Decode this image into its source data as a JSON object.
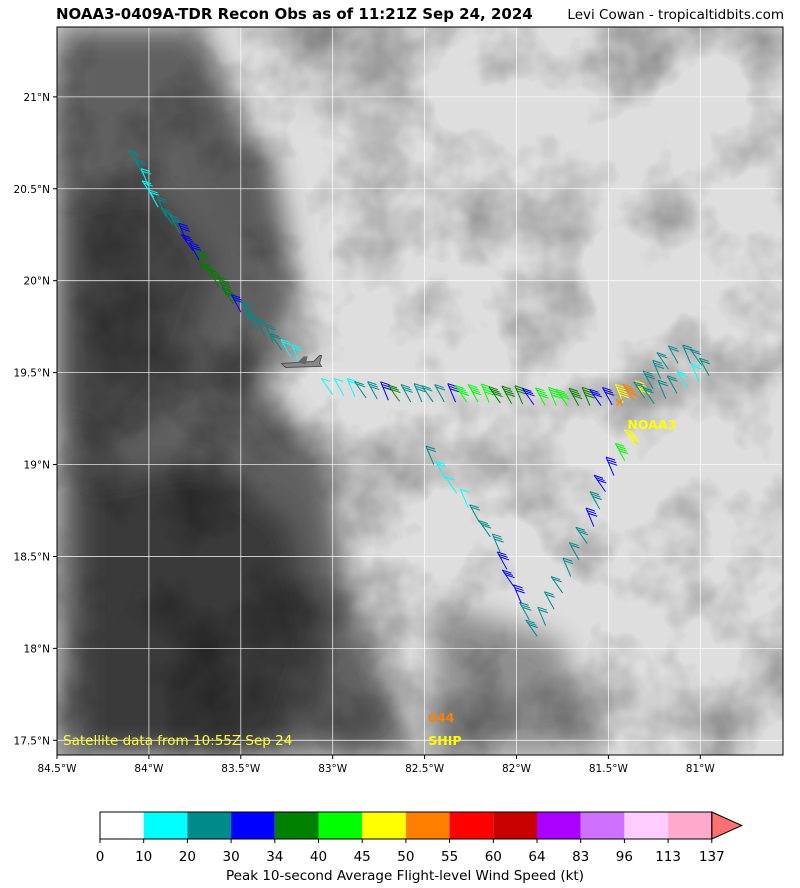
{
  "header": {
    "title": "NOAA3-0409A-TDR Recon Obs as of 11:21Z Sep 24, 2024",
    "credit": "Levi Cowan - tropicaltidbits.com"
  },
  "map": {
    "lon_range": [
      -84.5,
      -80.55
    ],
    "lat_range": [
      17.42,
      21.38
    ],
    "lon_ticks": [
      {
        "value": -84.5,
        "label": "84.5°W"
      },
      {
        "value": -84.0,
        "label": "84°W"
      },
      {
        "value": -83.5,
        "label": "83.5°W"
      },
      {
        "value": -83.0,
        "label": "83°W"
      },
      {
        "value": -82.5,
        "label": "82.5°W"
      },
      {
        "value": -82.0,
        "label": "82°W"
      },
      {
        "value": -81.5,
        "label": "81.5°W"
      },
      {
        "value": -81.0,
        "label": "81°W"
      }
    ],
    "lat_ticks": [
      {
        "value": 17.5,
        "label": "17.5°N"
      },
      {
        "value": 18.0,
        "label": "18°N"
      },
      {
        "value": 18.5,
        "label": "18.5°N"
      },
      {
        "value": 19.0,
        "label": "19°N"
      },
      {
        "value": 19.5,
        "label": "19.5°N"
      },
      {
        "value": 20.0,
        "label": "20°N"
      },
      {
        "value": 20.5,
        "label": "20.5°N"
      },
      {
        "value": 21.0,
        "label": "21°N"
      }
    ],
    "satellite_note": "Satellite data from 10:55Z Sep 24",
    "satellite_note_color": "#ffff33",
    "surface_obs": [
      {
        "value": "044",
        "label": "SHIP",
        "lon": -82.48,
        "lat": 17.6,
        "value_color": "#ff7f00",
        "label_color": "#ffff00"
      }
    ],
    "center_fix": {
      "lon": -81.44,
      "lat": 19.34,
      "label": "NOAA3"
    },
    "aircraft": {
      "lon": -83.18,
      "lat": 19.55
    },
    "flight_legs": [
      {
        "name": "inbound-nw",
        "points": [
          [
            -84.05,
            20.62
          ],
          [
            -83.95,
            20.4
          ],
          [
            -83.8,
            20.22
          ],
          [
            -83.65,
            20.0
          ],
          [
            -83.5,
            19.83
          ],
          [
            -83.38,
            19.71
          ],
          [
            -83.25,
            19.6
          ],
          [
            -83.18,
            19.55
          ]
        ],
        "winds": [
          20,
          20,
          18,
          18,
          16,
          22,
          25,
          28,
          32,
          32,
          30,
          34,
          36,
          37,
          38,
          36,
          30,
          28,
          26,
          24,
          22,
          20,
          18,
          15
        ]
      },
      {
        "name": "east-leg",
        "points": [
          [
            -83.0,
            19.38
          ],
          [
            -82.6,
            19.34
          ],
          [
            -82.2,
            19.34
          ],
          [
            -81.8,
            19.32
          ],
          [
            -81.5,
            19.32
          ],
          [
            -81.3,
            19.36
          ]
        ],
        "winds": [
          12,
          14,
          18,
          24,
          26,
          30,
          34,
          28,
          26,
          22,
          24,
          32,
          40,
          44,
          42,
          38,
          36,
          34,
          30,
          40,
          42,
          44,
          36,
          38,
          32,
          30,
          46,
          50,
          48
        ]
      },
      {
        "name": "ne-loop",
        "points": [
          [
            -81.3,
            19.36
          ],
          [
            -81.15,
            19.55
          ],
          [
            -81.0,
            19.55
          ],
          [
            -80.95,
            19.48
          ],
          [
            -81.1,
            19.4
          ],
          [
            -81.25,
            19.33
          ]
        ],
        "winds": [
          24,
          26,
          26,
          24,
          22,
          22,
          20,
          20,
          18,
          18,
          20,
          22,
          24
        ]
      },
      {
        "name": "south-sweep",
        "points": [
          [
            -81.35,
            19.1
          ],
          [
            -81.5,
            18.9
          ],
          [
            -81.6,
            18.6
          ],
          [
            -81.75,
            18.3
          ],
          [
            -81.88,
            18.05
          ],
          [
            -82.0,
            18.3
          ],
          [
            -82.1,
            18.55
          ],
          [
            -82.25,
            18.75
          ],
          [
            -82.45,
            19.0
          ]
        ],
        "winds": [
          46,
          40,
          32,
          30,
          28,
          30,
          26,
          24,
          22,
          20,
          20,
          22,
          26,
          28,
          30,
          32,
          30,
          28,
          26,
          22,
          14,
          12,
          18,
          20
        ]
      }
    ]
  },
  "colorbar": {
    "title": "Peak 10-second Average Flight-level Wind Speed (kt)",
    "bins": [
      {
        "lo": 0,
        "color": "#ffffff"
      },
      {
        "lo": 10,
        "color": "#00ffff"
      },
      {
        "lo": 20,
        "color": "#008b8b"
      },
      {
        "lo": 30,
        "color": "#0000ff"
      },
      {
        "lo": 34,
        "color": "#008000"
      },
      {
        "lo": 40,
        "color": "#00ff00"
      },
      {
        "lo": 45,
        "color": "#ffff00"
      },
      {
        "lo": 50,
        "color": "#ff7f00"
      },
      {
        "lo": 55,
        "color": "#ff0000"
      },
      {
        "lo": 60,
        "color": "#c80000"
      },
      {
        "lo": 64,
        "color": "#aa00ff"
      },
      {
        "lo": 83,
        "color": "#d070ff"
      },
      {
        "lo": 96,
        "color": "#ffccff"
      },
      {
        "lo": 113,
        "color": "#ffaacc"
      }
    ],
    "tick_labels": [
      "0",
      "10",
      "20",
      "30",
      "34",
      "40",
      "45",
      "50",
      "55",
      "60",
      "64",
      "83",
      "96",
      "113",
      "137"
    ],
    "extend_color": "#ff7070"
  }
}
